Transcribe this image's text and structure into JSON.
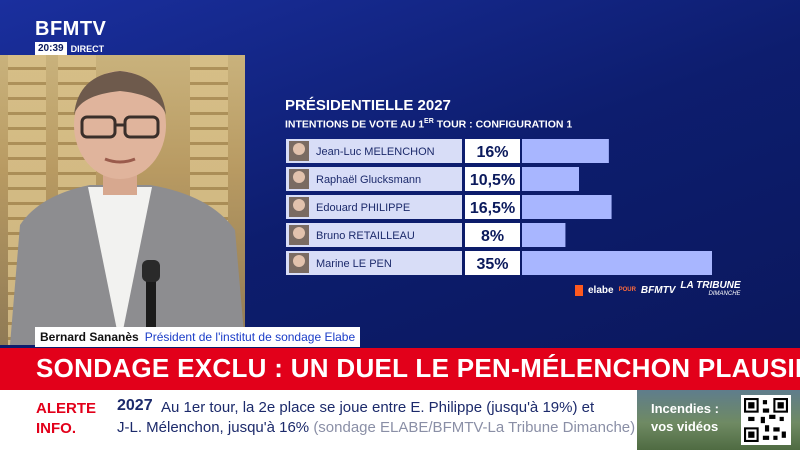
{
  "channel": {
    "logo": "BFMTV",
    "time": "20:39",
    "live_label": "DIRECT"
  },
  "chart_data": {
    "type": "bar",
    "title": "PRÉSIDENTIELLE 2027",
    "subtitle_main": "INTENTIONS DE VOTE AU 1",
    "subtitle_sup": "ER",
    "subtitle_tail": " TOUR : CONFIGURATION 1",
    "categories": [
      "Jean-Luc MELENCHON",
      "Raphaël Glucksmann",
      "Edouard PHILIPPE",
      "Bruno RETAILLEAU",
      "Marine LE PEN"
    ],
    "values": [
      16,
      10.5,
      16.5,
      8,
      35
    ],
    "value_labels": [
      "16%",
      "10,5%",
      "16,5%",
      "8%",
      "35%"
    ],
    "xlim": [
      0,
      35
    ],
    "colors": {
      "bar": "#a8b6ff",
      "label_bg": "#d8ddf7",
      "value_bg": "#ffffff",
      "value_text": "#0b1a5c"
    }
  },
  "partners": {
    "elabe": "elabe",
    "pour": "POUR",
    "bfmtv": "BFMTV",
    "tribune_main": "LA TRIBUNE",
    "tribune_sub": "DIMANCHE"
  },
  "lower_third": {
    "name": "Bernard Sananès",
    "role": "Président de l'institut de sondage Elabe"
  },
  "headline": "SONDAGE EXCLU : UN DUEL LE PEN-MÉLENCHON PLAUSIBLE",
  "ticker": {
    "label_line1": "ALERTE",
    "label_line2": "INFO.",
    "year": "2027",
    "line1": "Au 1er tour, la 2e place se joue entre E. Philippe (jusqu'à 19%) et",
    "line2_main": "J-L. Mélenchon, jusqu'à 16% ",
    "line2_source": "(sondage ELABE/BFMTV-La Tribune Dimanche)"
  },
  "promo": {
    "line1": "Incendies :",
    "line2": "vos vidéos"
  },
  "colors": {
    "accent_red": "#e2001a",
    "background_blue": "#0d1d6e"
  }
}
